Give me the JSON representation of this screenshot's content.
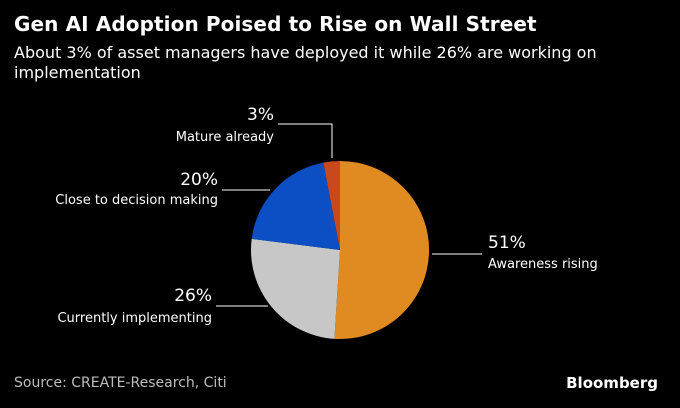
{
  "chart_data": {
    "type": "pie",
    "title": "Gen AI Adoption Poised to Rise on Wall Street",
    "subtitle": "About 3% of asset managers have deployed it while 26% are working on implementation",
    "slices": [
      {
        "label": "Awareness rising",
        "value": 51,
        "value_label": "51%",
        "color": "#e08a22"
      },
      {
        "label": "Currently implementing",
        "value": 26,
        "value_label": "26%",
        "color": "#c7c7c7"
      },
      {
        "label": "Close to decision making",
        "value": 20,
        "value_label": "20%",
        "color": "#0c4fc4"
      },
      {
        "label": "Mature already",
        "value": 3,
        "value_label": "3%",
        "color": "#c9491d"
      }
    ],
    "source": "Source: CREATE-Research, Citi",
    "brand": "Bloomberg"
  }
}
